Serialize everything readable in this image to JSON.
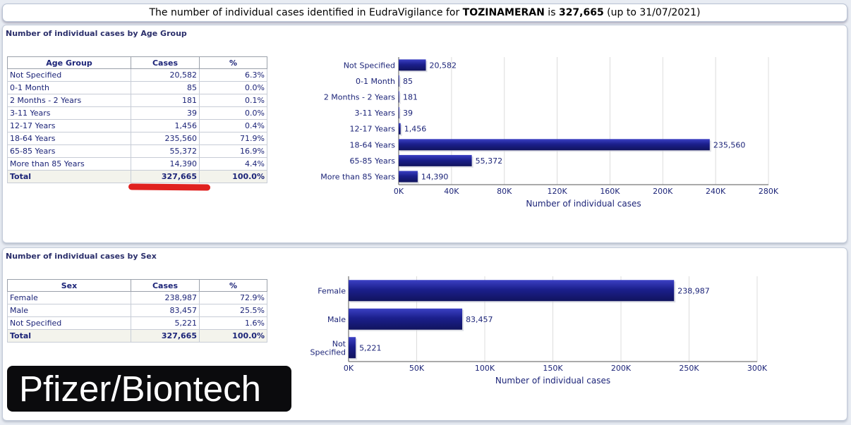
{
  "banner": {
    "prefix": "The number of individual cases identified in EudraVigilance for ",
    "product": "TOZINAMERAN",
    "mid": " is ",
    "total": "327,665",
    "suffix": " (up to 31/07/2021)"
  },
  "age_panel": {
    "title": "Number of individual cases by Age Group",
    "headers": [
      "Age Group",
      "Cases",
      "%"
    ],
    "rows": [
      [
        "Not Specified",
        "20,582",
        "6.3%"
      ],
      [
        "0-1 Month",
        "85",
        "0.0%"
      ],
      [
        "2 Months - 2 Years",
        "181",
        "0.1%"
      ],
      [
        "3-11 Years",
        "39",
        "0.0%"
      ],
      [
        "12-17 Years",
        "1,456",
        "0.4%"
      ],
      [
        "18-64 Years",
        "235,560",
        "71.9%"
      ],
      [
        "65-85 Years",
        "55,372",
        "16.9%"
      ],
      [
        "More than 85 Years",
        "14,390",
        "4.4%"
      ]
    ],
    "total_row": [
      "Total",
      "327,665",
      "100.0%"
    ]
  },
  "sex_panel": {
    "title": "Number of individual cases by Sex",
    "headers": [
      "Sex",
      "Cases",
      "%"
    ],
    "rows": [
      [
        "Female",
        "238,987",
        "72.9%"
      ],
      [
        "Male",
        "83,457",
        "25.5%"
      ],
      [
        "Not Specified",
        "5,221",
        "1.6%"
      ]
    ],
    "total_row": [
      "Total",
      "327,665",
      "100.0%"
    ]
  },
  "chart_data": [
    {
      "type": "bar",
      "orientation": "horizontal",
      "categories": [
        "Not Specified",
        "0-1 Month",
        "2 Months - 2 Years",
        "3-11 Years",
        "12-17 Years",
        "18-64 Years",
        "65-85 Years",
        "More than 85 Years"
      ],
      "values": [
        20582,
        85,
        181,
        39,
        1456,
        235560,
        55372,
        14390
      ],
      "value_labels": [
        "20,582",
        "85",
        "181",
        "39",
        "1,456",
        "235,560",
        "55,372",
        "14,390"
      ],
      "xlabel": "Number of individual cases",
      "xlim": [
        0,
        280000
      ],
      "xticks": [
        0,
        40000,
        80000,
        120000,
        160000,
        200000,
        240000,
        280000
      ],
      "xtick_labels": [
        "0K",
        "40K",
        "80K",
        "120K",
        "160K",
        "200K",
        "240K",
        "280K"
      ],
      "grid": true,
      "color": "#1b1f8c"
    },
    {
      "type": "bar",
      "orientation": "horizontal",
      "categories": [
        "Female",
        "Male",
        "Not Specified"
      ],
      "category_lines": [
        [
          "Female"
        ],
        [
          "Male"
        ],
        [
          "Not",
          "Specified"
        ]
      ],
      "values": [
        238987,
        83457,
        5221
      ],
      "value_labels": [
        "238,987",
        "83,457",
        "5,221"
      ],
      "xlabel": "Number of individual cases",
      "xlim": [
        0,
        300000
      ],
      "xticks": [
        0,
        50000,
        100000,
        150000,
        200000,
        250000,
        300000
      ],
      "xtick_labels": [
        "0K",
        "50K",
        "100K",
        "150K",
        "200K",
        "250K",
        "300K"
      ],
      "grid": true,
      "color": "#1b1f8c"
    }
  ],
  "brand": {
    "label": "Pfizer/Biontech"
  }
}
